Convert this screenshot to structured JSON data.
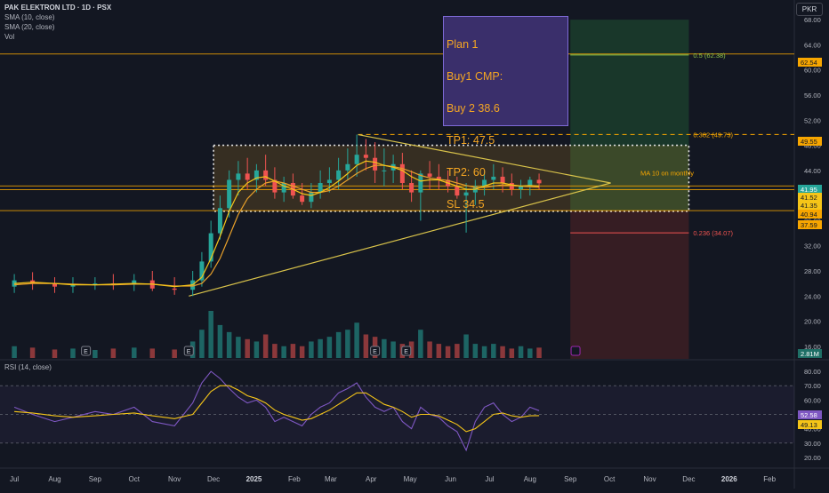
{
  "header": {
    "symbol_title": "PAK ELEKTRON LTD · 1D · PSX",
    "indicators": [
      "SMA (10, close)",
      "SMA (20, close)",
      "Vol"
    ],
    "currency_button": "PKR",
    "rsi_label": "RSI (14, close)"
  },
  "note": {
    "lines": [
      "Plan 1",
      "Buy1 CMP:",
      "Buy 2 38.6",
      "TP1: 47.5",
      "TP2: 60",
      "SL 34.5"
    ]
  },
  "chart_data": [
    {
      "type": "candlestick",
      "panel": "price",
      "x": [
        "2024-07-01",
        "2024-07-15",
        "2024-08-01",
        "2024-08-15",
        "2024-09-01",
        "2024-09-15",
        "2024-10-01",
        "2024-10-15",
        "2024-11-01",
        "2024-11-15",
        "2024-11-22",
        "2024-11-29",
        "2024-12-06",
        "2024-12-13",
        "2024-12-20",
        "2024-12-27",
        "2025-01-03",
        "2025-01-10",
        "2025-01-17",
        "2025-01-24",
        "2025-01-31",
        "2025-02-07",
        "2025-02-14",
        "2025-02-21",
        "2025-02-28",
        "2025-03-07",
        "2025-03-14",
        "2025-03-21",
        "2025-03-28",
        "2025-04-04",
        "2025-04-11",
        "2025-04-18",
        "2025-04-25",
        "2025-05-02",
        "2025-05-09",
        "2025-05-16",
        "2025-05-23",
        "2025-05-30",
        "2025-06-06",
        "2025-06-13",
        "2025-06-20",
        "2025-06-27",
        "2025-07-04",
        "2025-07-11",
        "2025-07-18",
        "2025-07-25",
        "2025-08-01",
        "2025-08-08"
      ],
      "open": [
        25.5,
        26.5,
        26.0,
        25.5,
        25.8,
        26.0,
        25.8,
        26.5,
        25.2,
        25.0,
        26.5,
        29.5,
        34.0,
        38.0,
        42.5,
        43.5,
        42.5,
        44.0,
        42.5,
        40.5,
        42.0,
        40.0,
        39.0,
        40.5,
        42.0,
        42.5,
        44.0,
        45.0,
        46.5,
        46.0,
        44.0,
        44.0,
        45.0,
        42.0,
        40.5,
        43.5,
        43.0,
        42.5,
        41.5,
        40.0,
        40.5,
        41.5,
        42.5,
        43.0,
        42.0,
        41.0,
        41.5,
        42.5
      ],
      "high": [
        27.5,
        27.8,
        27.0,
        27.0,
        27.0,
        27.5,
        27.5,
        28.0,
        27.0,
        28.0,
        31.0,
        36.0,
        40.0,
        44.0,
        45.5,
        46.0,
        45.0,
        46.5,
        44.5,
        43.0,
        43.5,
        42.0,
        42.0,
        44.0,
        44.5,
        46.0,
        47.5,
        49.7,
        49.0,
        48.5,
        47.5,
        46.5,
        46.8,
        44.0,
        44.0,
        45.5,
        45.0,
        44.0,
        43.0,
        42.0,
        42.5,
        44.0,
        45.0,
        44.5,
        43.5,
        42.5,
        43.0,
        43.5
      ],
      "low": [
        24.5,
        25.0,
        24.5,
        24.5,
        25.0,
        25.0,
        24.8,
        24.8,
        24.2,
        24.0,
        25.5,
        28.5,
        33.0,
        36.5,
        40.0,
        41.0,
        40.5,
        41.5,
        39.5,
        39.0,
        39.5,
        38.5,
        38.0,
        39.5,
        40.5,
        41.0,
        42.5,
        43.0,
        44.0,
        42.0,
        41.5,
        42.0,
        41.0,
        39.0,
        36.0,
        41.0,
        41.0,
        40.5,
        39.5,
        34.1,
        38.5,
        40.0,
        41.0,
        40.5,
        40.0,
        39.5,
        40.0,
        41.0
      ],
      "close": [
        26.5,
        26.0,
        25.5,
        25.8,
        26.0,
        25.8,
        26.5,
        25.2,
        25.0,
        26.5,
        29.5,
        34.0,
        38.0,
        42.5,
        43.5,
        42.5,
        44.0,
        42.5,
        40.5,
        42.0,
        40.0,
        39.0,
        40.5,
        42.0,
        42.5,
        44.0,
        45.0,
        46.5,
        46.0,
        44.0,
        44.0,
        45.0,
        42.0,
        40.5,
        43.5,
        43.0,
        42.5,
        41.5,
        40.0,
        40.5,
        41.5,
        42.5,
        43.0,
        42.0,
        41.0,
        41.5,
        42.5,
        41.95
      ],
      "sma10": [
        26.0,
        26.2,
        26.0,
        25.8,
        25.8,
        25.9,
        26.0,
        25.9,
        25.5,
        25.8,
        27.0,
        30.0,
        33.5,
        37.5,
        40.5,
        42.0,
        42.8,
        43.0,
        42.3,
        41.5,
        41.0,
        40.3,
        40.0,
        40.5,
        41.3,
        42.3,
        43.5,
        44.8,
        45.5,
        45.3,
        44.8,
        44.5,
        44.0,
        43.0,
        42.3,
        42.5,
        42.5,
        42.0,
        41.5,
        41.0,
        41.0,
        41.5,
        42.0,
        42.0,
        41.7,
        41.5,
        41.6,
        41.52
      ],
      "sma20": [
        25.8,
        26.0,
        26.0,
        25.9,
        25.8,
        25.8,
        25.9,
        25.9,
        25.6,
        25.6,
        26.0,
        27.5,
        30.0,
        33.5,
        37.0,
        39.5,
        41.0,
        42.0,
        42.3,
        42.0,
        41.5,
        41.0,
        40.5,
        40.5,
        40.8,
        41.5,
        42.5,
        43.5,
        44.3,
        44.8,
        44.8,
        44.6,
        44.3,
        43.8,
        43.2,
        42.8,
        42.6,
        42.4,
        42.0,
        41.6,
        41.3,
        41.3,
        41.5,
        41.7,
        41.6,
        41.5,
        41.4,
        41.35
      ],
      "yrange": [
        14,
        70
      ],
      "yticks": [
        "68.00",
        "64.00",
        "60.00",
        "56.00",
        "52.00",
        "48.00",
        "44.00",
        "40.00",
        "36.00",
        "32.00",
        "28.00",
        "24.00",
        "20.00",
        "16.00"
      ],
      "yticks_values": [
        68,
        64,
        60,
        56,
        52,
        48,
        44,
        40,
        36,
        32,
        28,
        24,
        20,
        16
      ],
      "axis_badges": [
        {
          "text": "62.54",
          "color": "#f7a600",
          "value": 62.54
        },
        {
          "text": "49.55",
          "color": "#f7a600",
          "value": 49.55
        },
        {
          "text": "41.95",
          "color": "#26a69a",
          "value": 41.95
        },
        {
          "text": "41.52",
          "color": "#f5c518",
          "value": 41.52
        },
        {
          "text": "41.35",
          "color": "#f5c518",
          "value": 41.35
        },
        {
          "text": "40.94",
          "color": "#f7a600",
          "value": 40.94
        },
        {
          "text": "37.59",
          "color": "#f7a600",
          "value": 37.59
        }
      ],
      "fib_levels": [
        {
          "label": "0.5 (62.38)",
          "value": 62.38,
          "color": "#8bc34a"
        },
        {
          "label": "0.382 (49.73)",
          "value": 49.73,
          "color": "#f7a600"
        },
        {
          "label": "0.236 (34.07)",
          "value": 34.07,
          "color": "#ef5350"
        }
      ],
      "annotation": "MA 10 on monthly",
      "series_colors": {
        "up": "#26a69a",
        "down": "#ef5350",
        "sma10": "#f5c518",
        "sma20": "#e8a02a"
      }
    },
    {
      "type": "bar",
      "panel": "volume",
      "badge": "2.81M",
      "values_relative": [
        0.25,
        0.22,
        0.18,
        0.2,
        0.17,
        0.2,
        0.22,
        0.2,
        0.18,
        0.35,
        0.6,
        1.0,
        0.7,
        0.55,
        0.45,
        0.4,
        0.35,
        0.5,
        0.3,
        0.25,
        0.3,
        0.25,
        0.35,
        0.4,
        0.45,
        0.55,
        0.6,
        0.75,
        0.5,
        0.45,
        0.4,
        0.35,
        0.3,
        0.35,
        0.6,
        0.35,
        0.3,
        0.25,
        0.3,
        0.5,
        0.3,
        0.25,
        0.3,
        0.25,
        0.2,
        0.25,
        0.2,
        0.22
      ],
      "markers": [
        "E",
        "E",
        "E",
        "E"
      ]
    },
    {
      "type": "line",
      "panel": "rsi",
      "series": [
        {
          "name": "RSI (14, close)",
          "color": "#7e57c2",
          "values": [
            55,
            50,
            45,
            48,
            52,
            50,
            55,
            45,
            42,
            58,
            72,
            80,
            75,
            68,
            62,
            58,
            60,
            55,
            45,
            48,
            45,
            42,
            50,
            55,
            58,
            65,
            68,
            72,
            62,
            55,
            52,
            55,
            45,
            40,
            55,
            50,
            48,
            42,
            38,
            25,
            45,
            55,
            58,
            50,
            45,
            48,
            55,
            52.58
          ]
        },
        {
          "name": "MA",
          "color": "#f5c518",
          "values": [
            52,
            51,
            49,
            48,
            49,
            50,
            51,
            49,
            47,
            50,
            58,
            66,
            70,
            70,
            67,
            63,
            61,
            58,
            53,
            50,
            48,
            46,
            47,
            50,
            53,
            57,
            61,
            65,
            65,
            61,
            57,
            55,
            52,
            48,
            50,
            50,
            49,
            46,
            43,
            38,
            40,
            45,
            50,
            51,
            49,
            48,
            49,
            49.13
          ]
        }
      ],
      "yrange": [
        15,
        85
      ],
      "yticks": [
        "80.00",
        "70.00",
        "60.00",
        "50.00",
        "40.00",
        "30.00",
        "20.00"
      ],
      "yticks_values": [
        80,
        70,
        60,
        50,
        40,
        30,
        20
      ],
      "bands": [
        70,
        50,
        30
      ],
      "badges": [
        {
          "text": "52.58",
          "color": "#7e57c2",
          "value": 52.58
        },
        {
          "text": "49.13",
          "color": "#f5c518",
          "value": 49.13
        }
      ]
    }
  ],
  "time_axis": {
    "labels": [
      "Jul",
      "Aug",
      "Sep",
      "Oct",
      "Nov",
      "Dec",
      "2025",
      "Feb",
      "Mar",
      "Apr",
      "May",
      "Jun",
      "Jul",
      "Aug",
      "Sep",
      "Oct",
      "Nov",
      "Dec",
      "2026",
      "Feb"
    ],
    "dates": [
      "2024-07-01",
      "2024-08-01",
      "2024-09-01",
      "2024-10-01",
      "2024-11-01",
      "2024-12-01",
      "2025-01-01",
      "2025-02-01",
      "2025-03-01",
      "2025-04-01",
      "2025-05-01",
      "2025-06-01",
      "2025-07-01",
      "2025-08-01",
      "2025-09-01",
      "2025-10-01",
      "2025-11-01",
      "2025-12-01",
      "2026-01-01",
      "2026-02-01"
    ],
    "range": [
      "2024-06-20",
      "2026-02-20"
    ]
  },
  "drawings": {
    "triangle_apex_date": "2025-10-02",
    "triangle_upper_start": {
      "date": "2025-03-22",
      "value": 49.7
    },
    "triangle_lower_start": {
      "date": "2024-11-12",
      "value": 24.0
    },
    "triangle_apex_value": 42.0,
    "rectangle": {
      "from": "2024-12-01",
      "to": "2025-12-01",
      "top": 48.0,
      "bottom": 37.5
    },
    "position": {
      "from": "2025-09-01",
      "to": "2025-12-01",
      "target": 68.0,
      "entry": 37.6,
      "stop": 14.0
    },
    "horizontal_lines": [
      {
        "value": 62.54,
        "color": "#f7a600"
      },
      {
        "value": 41.52,
        "color": "#f7a600"
      },
      {
        "value": 40.94,
        "color": "#f7a600"
      },
      {
        "value": 37.59,
        "color": "#f7a600"
      }
    ]
  }
}
